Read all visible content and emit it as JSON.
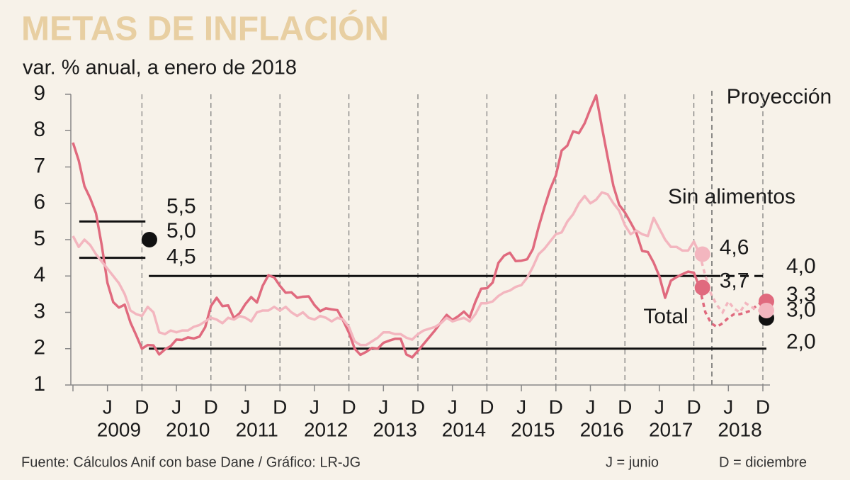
{
  "chart_data": {
    "type": "line",
    "title": "METAS DE INFLACIÓN",
    "subtitle": "var. % anual, a enero de 2018",
    "source": "Fuente: Cálculos Anif con base Dane / Gráfico: LR-JG",
    "legend_j": "J = junio",
    "legend_d": "D = diciembre",
    "projection_label": "Proyección",
    "ylim": [
      1,
      9
    ],
    "yticks": [
      1,
      2,
      3,
      4,
      5,
      6,
      7,
      8,
      9
    ],
    "categories": [
      null,
      null,
      null,
      null,
      null,
      null,
      "J",
      null,
      null,
      null,
      null,
      null,
      "D",
      null,
      null,
      null,
      null,
      null,
      "J",
      null,
      null,
      null,
      null,
      null,
      "D",
      null,
      null,
      null,
      null,
      null,
      "J",
      null,
      null,
      null,
      null,
      null,
      "D",
      null,
      null,
      null,
      null,
      null,
      "J",
      null,
      null,
      null,
      null,
      null,
      "D",
      null,
      null,
      null,
      null,
      null,
      "J",
      null,
      null,
      null,
      null,
      null,
      "D",
      null,
      null,
      null,
      null,
      null,
      "J",
      null,
      null,
      null,
      null,
      null,
      "D",
      null,
      null,
      null,
      null,
      null,
      "J",
      null,
      null,
      null,
      null,
      null,
      "D",
      null,
      null,
      null,
      null,
      null,
      "J",
      null,
      null,
      null,
      null,
      null,
      "D",
      null,
      null,
      null,
      null,
      null,
      "J",
      null,
      null,
      null,
      null,
      null,
      "D",
      null,
      null,
      null,
      null,
      null,
      "J",
      null,
      null,
      null,
      null,
      null,
      "D"
    ],
    "year_labels": [
      "2009",
      "2010",
      "2011",
      "2012",
      "2013",
      "2014",
      "2015",
      "2016",
      "2017",
      "2018"
    ],
    "series": [
      {
        "name": "Total",
        "color": "#e06a7e",
        "values": [
          7.67,
          7.18,
          6.47,
          6.14,
          5.73,
          4.85,
          3.81,
          3.28,
          3.13,
          3.21,
          2.72,
          2.37,
          2.0,
          2.1,
          2.09,
          1.84,
          1.98,
          2.07,
          2.25,
          2.24,
          2.31,
          2.28,
          2.33,
          2.59,
          3.17,
          3.4,
          3.17,
          3.19,
          2.84,
          2.98,
          3.23,
          3.42,
          3.27,
          3.73,
          4.02,
          3.96,
          3.73,
          3.54,
          3.55,
          3.4,
          3.43,
          3.44,
          3.2,
          3.03,
          3.11,
          3.08,
          3.06,
          2.77,
          2.44,
          2.0,
          1.83,
          1.91,
          2.02,
          2.0,
          2.16,
          2.22,
          2.27,
          2.27,
          1.84,
          1.76,
          1.94,
          2.13,
          2.32,
          2.51,
          2.72,
          2.93,
          2.79,
          2.89,
          3.02,
          2.86,
          3.29,
          3.65,
          3.66,
          3.82,
          4.36,
          4.56,
          4.64,
          4.41,
          4.42,
          4.46,
          4.74,
          5.35,
          5.89,
          6.39,
          6.77,
          7.45,
          7.59,
          7.98,
          7.93,
          8.2,
          8.6,
          8.97,
          8.1,
          7.27,
          6.48,
          5.96,
          5.75,
          5.47,
          5.18,
          4.69,
          4.66,
          4.37,
          3.99,
          3.4,
          3.87,
          3.97,
          4.05,
          4.12,
          4.09,
          3.68,
          null,
          null,
          null,
          null,
          null,
          null,
          null,
          null,
          null,
          null,
          null
        ],
        "value_labels": [
          null,
          null,
          null,
          null,
          null,
          null,
          null,
          null,
          null,
          null,
          null,
          null,
          null,
          null,
          null,
          null,
          null,
          null,
          null,
          null,
          null,
          null,
          null,
          null,
          null,
          null,
          null,
          null,
          null,
          null,
          null,
          null,
          null,
          null,
          null,
          null,
          null,
          null,
          null,
          null,
          null,
          null,
          null,
          null,
          null,
          null,
          null,
          null,
          null,
          null,
          null,
          null,
          null,
          null,
          null,
          null,
          null,
          null,
          null,
          null,
          null,
          null,
          null,
          null,
          null,
          null,
          null,
          null,
          null,
          null,
          null,
          null,
          null,
          null,
          null,
          null,
          null,
          null,
          null,
          null,
          null,
          null,
          null,
          null,
          null,
          null,
          null,
          null,
          null,
          null,
          null,
          null,
          null,
          null,
          null,
          null,
          null,
          null,
          null,
          null,
          null,
          null,
          null,
          null,
          null,
          null,
          null,
          null,
          null,
          "3,7",
          null,
          null,
          null,
          null,
          null,
          null,
          null,
          null,
          null,
          null,
          null
        ],
        "projection": [
          null,
          null,
          null,
          null,
          null,
          null,
          null,
          null,
          null,
          null,
          null,
          null,
          null,
          null,
          null,
          null,
          null,
          null,
          null,
          null,
          null,
          null,
          null,
          null,
          null,
          null,
          null,
          null,
          null,
          null,
          null,
          null,
          null,
          null,
          null,
          null,
          null,
          null,
          null,
          null,
          null,
          null,
          null,
          null,
          null,
          null,
          null,
          null,
          null,
          null,
          null,
          null,
          null,
          null,
          null,
          null,
          null,
          null,
          null,
          null,
          null,
          null,
          null,
          null,
          null,
          null,
          null,
          null,
          null,
          null,
          null,
          null,
          null,
          null,
          null,
          null,
          null,
          null,
          null,
          null,
          null,
          null,
          null,
          null,
          null,
          null,
          null,
          null,
          null,
          null,
          null,
          null,
          null,
          null,
          null,
          null,
          null,
          null,
          null,
          null,
          null,
          null,
          null,
          null,
          null,
          null,
          null,
          null,
          null,
          null,
          3.0,
          2.7,
          2.6,
          2.7,
          2.85,
          2.95,
          2.95,
          3.0,
          3.05,
          3.2,
          3.3
        ],
        "projection_labels": [
          null,
          null,
          null,
          null,
          null,
          null,
          null,
          null,
          null,
          null,
          null,
          null,
          null,
          null,
          null,
          null,
          null,
          null,
          null,
          null,
          null,
          null,
          null,
          null,
          null,
          null,
          null,
          null,
          null,
          null,
          null,
          null,
          null,
          null,
          null,
          null,
          null,
          null,
          null,
          null,
          null,
          null,
          null,
          null,
          null,
          null,
          null,
          null,
          null,
          null,
          null,
          null,
          null,
          null,
          null,
          null,
          null,
          null,
          null,
          null,
          null,
          null,
          null,
          null,
          null,
          null,
          null,
          null,
          null,
          null,
          null,
          null,
          null,
          null,
          null,
          null,
          null,
          null,
          null,
          null,
          null,
          null,
          null,
          null,
          null,
          null,
          null,
          null,
          null,
          null,
          null,
          null,
          null,
          null,
          null,
          null,
          null,
          null,
          null,
          null,
          null,
          null,
          null,
          null,
          null,
          null,
          null,
          null,
          null,
          null,
          null,
          null,
          null,
          null,
          null,
          null,
          null,
          null,
          null,
          null,
          "3,3"
        ]
      },
      {
        "name": "Sin alimentos",
        "color": "#f3b6bf",
        "values": [
          5.1,
          4.8,
          5.0,
          4.85,
          4.6,
          4.4,
          4.2,
          4.0,
          3.8,
          3.5,
          3.05,
          2.95,
          2.9,
          3.15,
          3.0,
          2.45,
          2.4,
          2.5,
          2.45,
          2.5,
          2.5,
          2.6,
          2.65,
          2.75,
          2.85,
          2.8,
          2.7,
          2.85,
          2.8,
          2.9,
          2.85,
          2.75,
          3.0,
          3.05,
          3.05,
          3.15,
          3.05,
          3.15,
          3.0,
          2.9,
          3.0,
          2.85,
          2.8,
          2.9,
          2.85,
          2.75,
          2.85,
          2.8,
          2.6,
          2.2,
          2.1,
          2.1,
          2.2,
          2.3,
          2.45,
          2.45,
          2.4,
          2.4,
          2.3,
          2.25,
          2.4,
          2.5,
          2.55,
          2.6,
          2.7,
          2.85,
          2.75,
          2.8,
          2.85,
          2.75,
          2.95,
          3.25,
          3.25,
          3.3,
          3.45,
          3.55,
          3.6,
          3.7,
          3.75,
          3.95,
          4.25,
          4.6,
          4.75,
          4.95,
          5.15,
          5.2,
          5.5,
          5.7,
          6.0,
          6.2,
          6.0,
          6.1,
          6.3,
          6.25,
          6.0,
          5.8,
          5.4,
          5.15,
          5.25,
          5.15,
          5.1,
          5.6,
          5.3,
          5.0,
          4.8,
          4.8,
          4.7,
          4.7,
          4.95,
          4.6,
          null,
          null,
          null,
          null,
          null,
          null,
          null,
          null,
          null,
          null,
          null
        ],
        "value_labels": [
          null,
          null,
          null,
          null,
          null,
          null,
          null,
          null,
          null,
          null,
          null,
          null,
          null,
          null,
          null,
          null,
          null,
          null,
          null,
          null,
          null,
          null,
          null,
          null,
          null,
          null,
          null,
          null,
          null,
          null,
          null,
          null,
          null,
          null,
          null,
          null,
          null,
          null,
          null,
          null,
          null,
          null,
          null,
          null,
          null,
          null,
          null,
          null,
          null,
          null,
          null,
          null,
          null,
          null,
          null,
          null,
          null,
          null,
          null,
          null,
          null,
          null,
          null,
          null,
          null,
          null,
          null,
          null,
          null,
          null,
          null,
          null,
          null,
          null,
          null,
          null,
          null,
          null,
          null,
          null,
          null,
          null,
          null,
          null,
          null,
          null,
          null,
          null,
          null,
          null,
          null,
          null,
          null,
          null,
          null,
          null,
          null,
          null,
          null,
          null,
          null,
          null,
          null,
          null,
          null,
          null,
          null,
          null,
          null,
          "4,6",
          null,
          null,
          null,
          null,
          null,
          null,
          null,
          null,
          null,
          null,
          null
        ],
        "projection": [
          null,
          null,
          null,
          null,
          null,
          null,
          null,
          null,
          null,
          null,
          null,
          null,
          null,
          null,
          null,
          null,
          null,
          null,
          null,
          null,
          null,
          null,
          null,
          null,
          null,
          null,
          null,
          null,
          null,
          null,
          null,
          null,
          null,
          null,
          null,
          null,
          null,
          null,
          null,
          null,
          null,
          null,
          null,
          null,
          null,
          null,
          null,
          null,
          null,
          null,
          null,
          null,
          null,
          null,
          null,
          null,
          null,
          null,
          null,
          null,
          null,
          null,
          null,
          null,
          null,
          null,
          null,
          null,
          null,
          null,
          null,
          null,
          null,
          null,
          null,
          null,
          null,
          null,
          null,
          null,
          null,
          null,
          null,
          null,
          null,
          null,
          null,
          null,
          null,
          null,
          null,
          null,
          null,
          null,
          null,
          null,
          null,
          null,
          null,
          null,
          null,
          null,
          null,
          null,
          null,
          null,
          null,
          null,
          null,
          null,
          4.0,
          3.5,
          3.2,
          3.0,
          3.3,
          3.1,
          3.0,
          3.25,
          3.15,
          3.05,
          3.05
        ]
      }
    ],
    "targets": [
      {
        "low": {
          "value": 4.5,
          "label": "4,5"
        },
        "high": {
          "value": 5.5,
          "label": "5,5"
        },
        "point": {
          "value": 5,
          "label": "5,0"
        }
      },
      {
        "low": {
          "value": 2,
          "label": "2,0"
        },
        "high": {
          "value": 4,
          "label": "4,0"
        },
        "point": {
          "value": 3,
          "label": "3,0"
        }
      }
    ]
  }
}
